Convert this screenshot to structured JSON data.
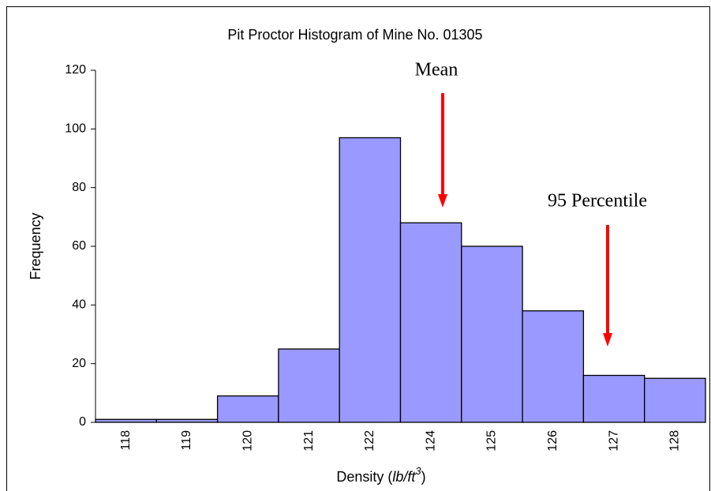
{
  "chart_data": {
    "type": "bar",
    "title": "Pit Proctor Histogram of Mine No. 01305",
    "y_label": "Frequency",
    "x_label_parts": [
      "Density (",
      "lb/ft",
      "3",
      ")"
    ],
    "categories": [
      "118",
      "119",
      "120",
      "121",
      "122",
      "124",
      "125",
      "126",
      "127",
      "128"
    ],
    "values": [
      1,
      1,
      9,
      25,
      97,
      68,
      60,
      38,
      16,
      15
    ],
    "color": "#9999ff",
    "ylim": [
      0,
      120
    ],
    "yticks": [
      0,
      20,
      40,
      60,
      80,
      100,
      120
    ],
    "annotations": [
      {
        "text": "Mean"
      },
      {
        "text": "95 Percentile"
      }
    ]
  }
}
